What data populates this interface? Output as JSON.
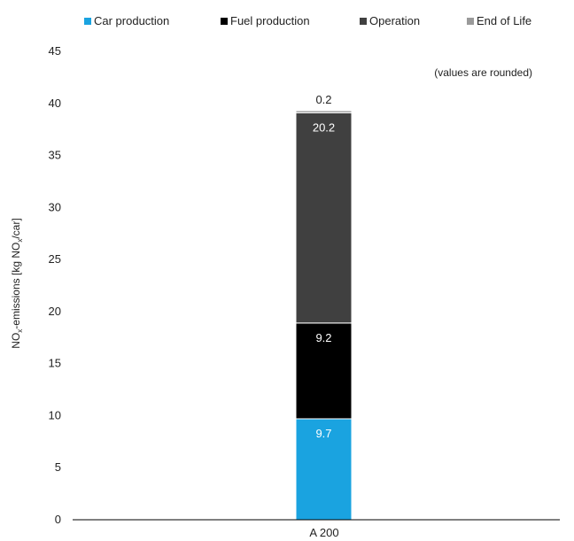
{
  "chart_data": {
    "type": "bar",
    "stacked": true,
    "categories": [
      "A 200"
    ],
    "series": [
      {
        "name": "Car production",
        "values": [
          9.7
        ],
        "color": "#1aa3e0",
        "label_color": "#ffffff"
      },
      {
        "name": "Fuel production",
        "values": [
          9.2
        ],
        "color": "#000000",
        "label_color": "#ffffff"
      },
      {
        "name": "Operation",
        "values": [
          20.2
        ],
        "color": "#404040",
        "label_color": "#ffffff"
      },
      {
        "name": "End of Life",
        "values": [
          0.2
        ],
        "color": "#9a9a9a",
        "label_color": "#222222"
      }
    ],
    "data_labels": [
      "9.7",
      "9.2",
      "20.2",
      "0.2"
    ],
    "ylabel": "NOx-emissions [kg NOx/car]",
    "ylabel_parts": {
      "p1": "NO",
      "s1": "x",
      "p2": "-emissions [kg NO",
      "s2": "x",
      "p3": "/car]"
    },
    "ylim": [
      0,
      45
    ],
    "yticks": [
      "0",
      "5",
      "10",
      "15",
      "20",
      "25",
      "30",
      "35",
      "40",
      "45"
    ],
    "annotation": "(values are rounded)",
    "grid": false,
    "legend_position": "top"
  }
}
